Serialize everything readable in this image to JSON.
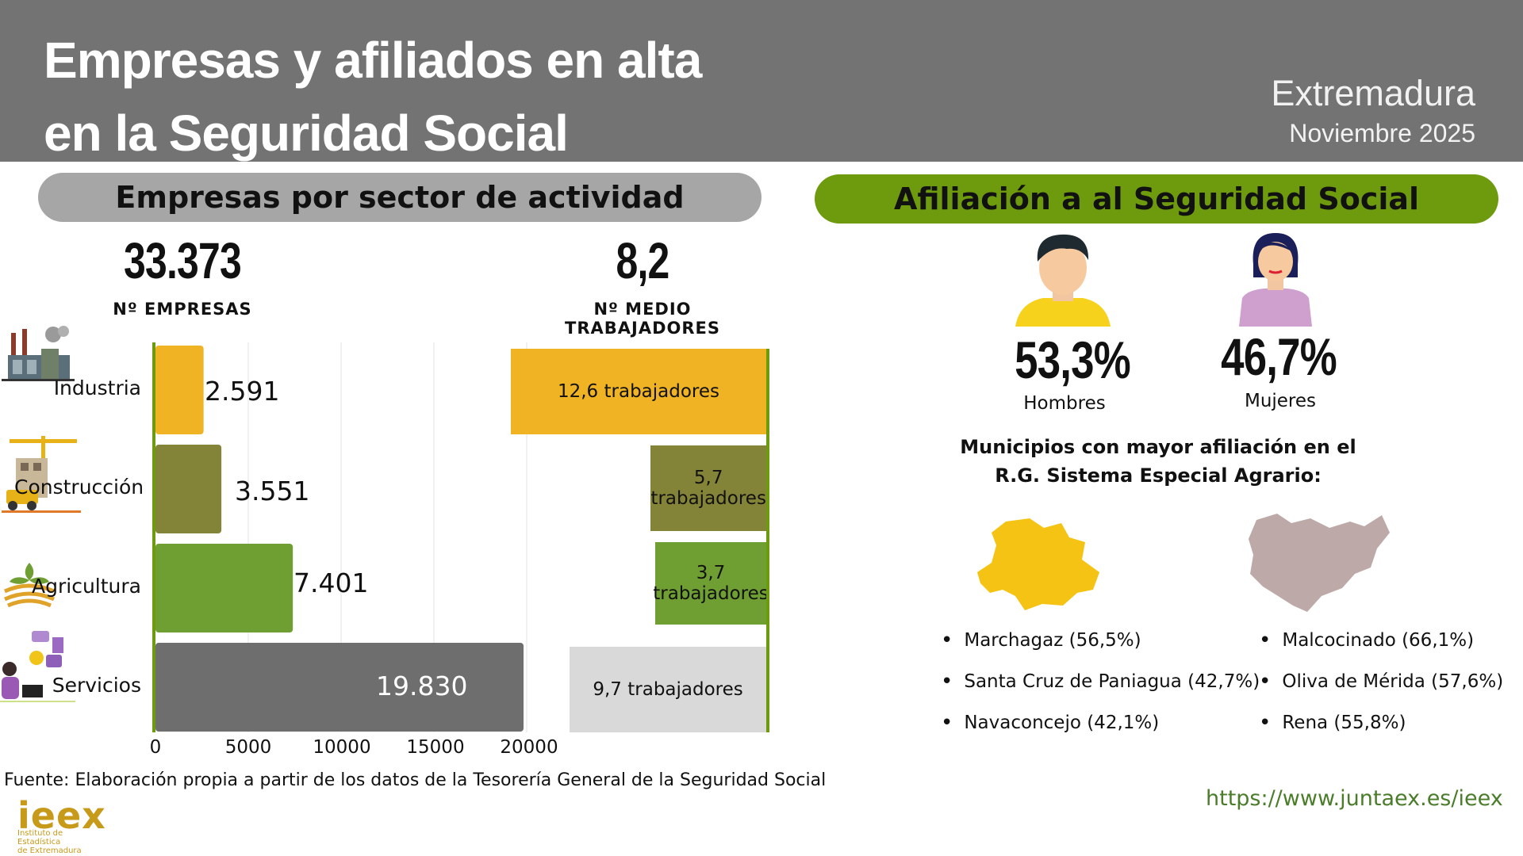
{
  "header": {
    "title_line1": "Empresas y afiliados en alta",
    "title_line2": "en la Seguridad Social",
    "region": "Extremadura",
    "date": "Noviembre 2025"
  },
  "left": {
    "section_title": "Empresas por sector de actividad",
    "total_companies": "33.373",
    "total_companies_label": "Nº EMPRESAS",
    "avg_workers": "8,2",
    "avg_workers_label": "Nº MEDIO TRABAJADORES"
  },
  "chart_data": {
    "type": "bar",
    "orientation": "horizontal",
    "title": "Empresas por sector de actividad",
    "categories": [
      "Industria",
      "Construcción",
      "Agricultura",
      "Servicios"
    ],
    "values": [
      2591,
      3551,
      7401,
      19830
    ],
    "value_labels": [
      "2.591",
      "3.551",
      "7.401",
      "19.830"
    ],
    "colors": [
      "#f0b323",
      "#848438",
      "#6f9e32",
      "#6e6e6e"
    ],
    "xlim": [
      0,
      20000
    ],
    "xticks": [
      0,
      5000,
      10000,
      15000,
      20000
    ],
    "grid": true,
    "avg_workers": {
      "values": [
        12.6,
        5.7,
        3.7,
        9.7
      ],
      "labels": [
        "12,6 trabajadores",
        "5,7 trabajadores",
        "3,7 trabajadores",
        "9,7 trabajadores"
      ],
      "colors": [
        "#f0b323",
        "#848438",
        "#6f9e32",
        "#d9d9d9"
      ]
    }
  },
  "right": {
    "section_title": "Afiliación a al Seguridad Social",
    "men_pct": "53,3%",
    "men_label": "Hombres",
    "women_pct": "46,7%",
    "women_label": "Mujeres",
    "muni_title_line1": "Municipios con mayor afiliación en el",
    "muni_title_line2": "R.G. Sistema Especial Agrario:",
    "caceres_list": [
      "Marchagaz (56,5%)",
      "Santa Cruz de Paniagua (42,7%)",
      "Navaconcejo  (42,1%)"
    ],
    "badajoz_list": [
      "Malcocinado (66,1%)",
      "Oliva de Mérida (57,6%)",
      "Rena (55,8%)"
    ],
    "colors": {
      "caceres": "#f5c313",
      "badajoz": "#bdaaa8",
      "men_shirt": "#f6d21c",
      "women_shirt": "#cf9fce",
      "accent": "#6e9a0e"
    }
  },
  "footer": {
    "source": "Fuente: Elaboración propia a partir de los datos de la Tesorería General de la Seguridad Social",
    "url": "https://www.juntaex.es/ieex",
    "logo": "ieex",
    "logo_sub1": "Instituto de Estadística",
    "logo_sub2": "de Extremadura"
  }
}
